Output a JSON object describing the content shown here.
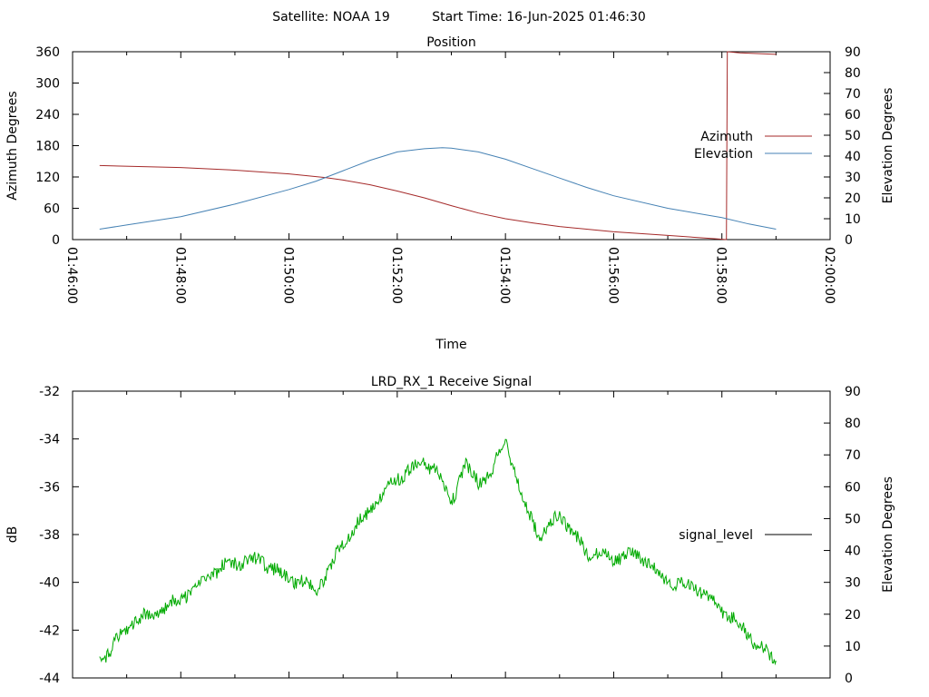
{
  "header": {
    "satellite": "Satellite: NOAA 19",
    "start_time": "Start Time: 16-Jun-2025 01:46:30"
  },
  "chart_data": [
    {
      "type": "line",
      "title": "Position",
      "xlabel": "Time",
      "ylabel": "Azimuth Degrees",
      "y2label": "Elevation Degrees",
      "xlim": [
        "01:46:00",
        "02:00:00"
      ],
      "ylim": [
        0,
        360
      ],
      "y2lim": [
        0,
        90
      ],
      "x_ticks": [
        "01:46:00",
        "01:48:00",
        "01:50:00",
        "01:52:00",
        "01:54:00",
        "01:56:00",
        "01:58:00",
        "02:00:00"
      ],
      "y_ticks": [
        "0",
        "60",
        "120",
        "180",
        "240",
        "300",
        "360"
      ],
      "y2_ticks": [
        "0",
        "10",
        "20",
        "30",
        "40",
        "50",
        "60",
        "70",
        "80",
        "90"
      ],
      "legend": "right",
      "grid": false,
      "series": [
        {
          "name": "Azimuth",
          "color": "#a52a2a",
          "axis": "left",
          "x": [
            "01:46:30",
            "01:48:00",
            "01:49:00",
            "01:50:00",
            "01:50:40",
            "01:51:00",
            "01:51:30",
            "01:52:00",
            "01:52:30",
            "01:53:00",
            "01:53:30",
            "01:54:00",
            "01:54:30",
            "01:55:00",
            "01:56:00",
            "01:57:00",
            "01:57:50",
            "01:58:05",
            "01:58:06",
            "01:58:20",
            "01:59:00"
          ],
          "values": [
            142,
            138,
            133,
            126,
            119,
            114,
            105,
            93,
            80,
            65,
            51,
            40,
            32,
            25,
            15,
            8,
            2,
            0,
            360,
            358,
            355
          ]
        },
        {
          "name": "Elevation",
          "color": "#4682b4",
          "axis": "right",
          "x": [
            "01:46:30",
            "01:47:00",
            "01:48:00",
            "01:49:00",
            "01:50:00",
            "01:50:30",
            "01:51:00",
            "01:51:30",
            "01:52:00",
            "01:52:30",
            "01:52:50",
            "01:53:00",
            "01:53:30",
            "01:54:00",
            "01:54:30",
            "01:55:00",
            "01:55:30",
            "01:56:00",
            "01:57:00",
            "01:58:00",
            "01:58:30",
            "01:59:00"
          ],
          "values": [
            5,
            7,
            11,
            17,
            24,
            28,
            33,
            38,
            42,
            43.5,
            44,
            43.8,
            42,
            38.5,
            34,
            29.5,
            25,
            21,
            15,
            10.5,
            7.5,
            5
          ]
        }
      ]
    },
    {
      "type": "line",
      "title": "LRD_RX_1 Receive Signal",
      "ylabel": "dB",
      "y2label": "Elevation Degrees",
      "xlim": [
        "01:46:00",
        "02:00:00"
      ],
      "ylim": [
        -44,
        -32
      ],
      "y2lim": [
        0,
        90
      ],
      "y_ticks": [
        "-44",
        "-42",
        "-40",
        "-38",
        "-36",
        "-34",
        "-32"
      ],
      "y2_ticks": [
        "0",
        "10",
        "20",
        "30",
        "40",
        "50",
        "60",
        "70",
        "80",
        "90"
      ],
      "legend": "right",
      "grid": false,
      "series": [
        {
          "name": "signal_level",
          "color": "#00aa00",
          "x": [
            "01:46:30",
            "01:46:45",
            "01:47:00",
            "01:47:30",
            "01:48:00",
            "01:48:30",
            "01:49:00",
            "01:49:30",
            "01:50:00",
            "01:50:15",
            "01:50:30",
            "01:50:45",
            "01:51:00",
            "01:51:30",
            "01:52:00",
            "01:52:30",
            "01:52:45",
            "01:53:00",
            "01:53:15",
            "01:53:30",
            "01:53:45",
            "01:54:00",
            "01:54:20",
            "01:54:40",
            "01:55:00",
            "01:55:30",
            "01:56:00",
            "01:56:30",
            "01:57:00",
            "01:57:30",
            "01:58:00",
            "01:58:30",
            "01:59:00"
          ],
          "values": [
            -43.3,
            -42.8,
            -42.0,
            -41.3,
            -40.5,
            -39.8,
            -39.3,
            -39.0,
            -39.7,
            -40.0,
            -40.4,
            -39.6,
            -38.4,
            -36.8,
            -35.6,
            -35.1,
            -35.5,
            -36.6,
            -35.0,
            -35.6,
            -35.3,
            -34.0,
            -36.8,
            -38.2,
            -37.0,
            -38.6,
            -39.1,
            -39.0,
            -39.8,
            -40.1,
            -41.3,
            -42.2,
            -43.2
          ]
        }
      ]
    }
  ]
}
